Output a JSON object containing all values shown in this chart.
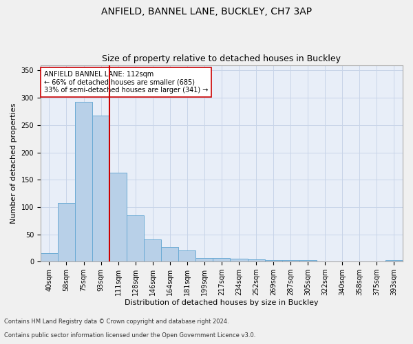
{
  "title": "ANFIELD, BANNEL LANE, BUCKLEY, CH7 3AP",
  "subtitle": "Size of property relative to detached houses in Buckley",
  "xlabel": "Distribution of detached houses by size in Buckley",
  "ylabel": "Number of detached properties",
  "footnote1": "Contains HM Land Registry data © Crown copyright and database right 2024.",
  "footnote2": "Contains public sector information licensed under the Open Government Licence v3.0.",
  "categories": [
    "40sqm",
    "58sqm",
    "75sqm",
    "93sqm",
    "111sqm",
    "128sqm",
    "146sqm",
    "164sqm",
    "181sqm",
    "199sqm",
    "217sqm",
    "234sqm",
    "252sqm",
    "269sqm",
    "287sqm",
    "305sqm",
    "322sqm",
    "340sqm",
    "358sqm",
    "375sqm",
    "393sqm"
  ],
  "values": [
    15,
    108,
    293,
    268,
    163,
    85,
    40,
    27,
    20,
    7,
    6,
    5,
    4,
    3,
    3,
    3,
    0,
    0,
    0,
    0,
    3
  ],
  "bar_color": "#b8d0e8",
  "bar_edgecolor": "#6aaad4",
  "bar_linewidth": 0.7,
  "vline_x": 4.0,
  "vline_color": "#cc0000",
  "vline_linewidth": 1.5,
  "annotation_text": "ANFIELD BANNEL LANE: 112sqm\n← 66% of detached houses are smaller (685)\n33% of semi-detached houses are larger (341) →",
  "annotation_box_edgecolor": "#cc0000",
  "annotation_box_facecolor": "white",
  "ylim": [
    0,
    360
  ],
  "yticks": [
    0,
    50,
    100,
    150,
    200,
    250,
    300,
    350
  ],
  "grid_color": "#c8d4e8",
  "plot_background": "#e8eef8",
  "fig_background": "#f0f0f0",
  "title_fontsize": 10,
  "subtitle_fontsize": 9,
  "tick_fontsize": 7,
  "label_fontsize": 8,
  "footnote_fontsize": 6
}
